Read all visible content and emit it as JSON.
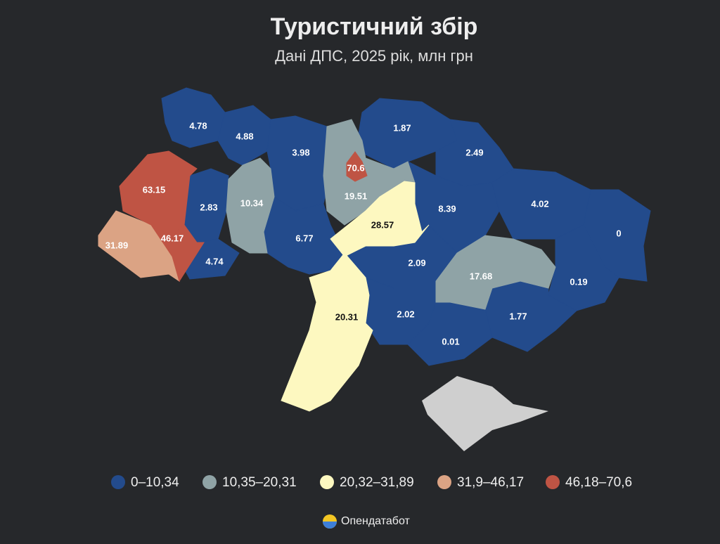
{
  "chart_data": {
    "type": "choropleth",
    "title": "Туристичний збір",
    "subtitle": "Дані ДПС, 2025 рік, млн грн",
    "series": [
      {
        "name": "0–10,34",
        "color": "#234b8c",
        "values": [
          4.78,
          4.88,
          3.98,
          2.83,
          4.74,
          6.77,
          1.87,
          2.49,
          8.39,
          4.02,
          0,
          2.09,
          0.19,
          2.02,
          1.77,
          0.01
        ]
      },
      {
        "name": "10,35–20,31",
        "color": "#8fa3a6",
        "values": [
          10.34,
          19.51,
          17.68
        ]
      },
      {
        "name": "20,32–31,89",
        "color": "#fdf8c0",
        "values": [
          28.57,
          20.31
        ]
      },
      {
        "name": "31,9–46,17",
        "color": "#dba384",
        "values": [
          31.89
        ]
      },
      {
        "name": "46,18–70,6",
        "color": "#bf5444",
        "values": [
          63.15,
          46.17,
          70.6
        ]
      }
    ],
    "source": "Опендатабот"
  }
}
